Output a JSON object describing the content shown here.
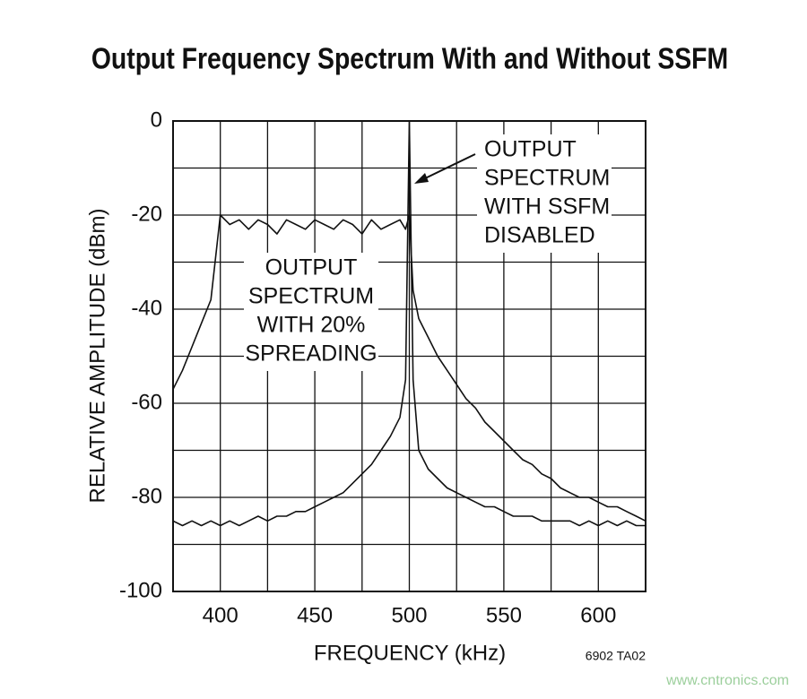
{
  "chart_data": {
    "type": "line",
    "title": "Output Frequency Spectrum With and Without SSFM",
    "x_label": "FREQUENCY (kHz)",
    "y_label": "RELATIVE AMPLITUDE (dBm)",
    "xlim": [
      375,
      625
    ],
    "xticks": [
      400,
      450,
      500,
      550,
      600
    ],
    "x_grid": [
      375,
      400,
      425,
      450,
      475,
      500,
      525,
      550,
      575,
      600,
      625
    ],
    "ylim": [
      -100,
      0
    ],
    "yticks": [
      0,
      -20,
      -40,
      -60,
      -80,
      -100
    ],
    "y_grid": [
      0,
      -10,
      -20,
      -30,
      -40,
      -50,
      -60,
      -70,
      -80,
      -90,
      -100
    ],
    "grid": true,
    "x": [
      375,
      380,
      385,
      390,
      395,
      400,
      405,
      410,
      415,
      420,
      425,
      430,
      435,
      440,
      445,
      450,
      455,
      460,
      465,
      470,
      475,
      480,
      485,
      490,
      495,
      498,
      500,
      502,
      505,
      510,
      515,
      520,
      525,
      530,
      535,
      540,
      545,
      550,
      555,
      560,
      565,
      570,
      575,
      580,
      585,
      590,
      595,
      600,
      605,
      610,
      615,
      620,
      625
    ],
    "series": [
      {
        "color": "#111111",
        "width": 1.6,
        "values": [
          -57,
          -53,
          -48,
          -43,
          -38,
          -20,
          -22,
          -21,
          -23,
          -21,
          -22,
          -24,
          -21,
          -22,
          -23,
          -21,
          -22,
          -23,
          -21,
          -22,
          -24,
          -21,
          -23,
          -22,
          -21,
          -23,
          -20,
          -36,
          -42,
          -46,
          -50,
          -53,
          -56,
          -59,
          -61,
          -64,
          -66,
          -68,
          -70,
          -72,
          -73,
          -75,
          -76,
          -78,
          -79,
          -80,
          -80,
          -81,
          -82,
          -82,
          -83,
          -84,
          -85
        ]
      },
      {
        "color": "#111111",
        "width": 1.6,
        "values": [
          -85,
          -86,
          -85,
          -86,
          -85,
          -86,
          -85,
          -86,
          -85,
          -84,
          -85,
          -84,
          -84,
          -83,
          -83,
          -82,
          -81,
          -80,
          -79,
          -77,
          -75,
          -73,
          -70,
          -67,
          -63,
          -55,
          0,
          -55,
          -70,
          -74,
          -76,
          -78,
          -79,
          -80,
          -81,
          -82,
          -82,
          -83,
          -84,
          -84,
          -84,
          -85,
          -85,
          -85,
          -85,
          -86,
          -85,
          -86,
          -85,
          -86,
          -85,
          -86,
          -86
        ]
      }
    ],
    "annotations": [
      {
        "lines": [
          "OUTPUT",
          "SPECTRUM",
          "WITH 20%",
          "SPREADING"
        ]
      },
      {
        "lines": [
          "OUTPUT",
          "SPECTRUM",
          "WITH SSFM",
          "DISABLED"
        ]
      }
    ],
    "footnote": "6902 TA02",
    "watermark": "www.cntronics.com"
  }
}
